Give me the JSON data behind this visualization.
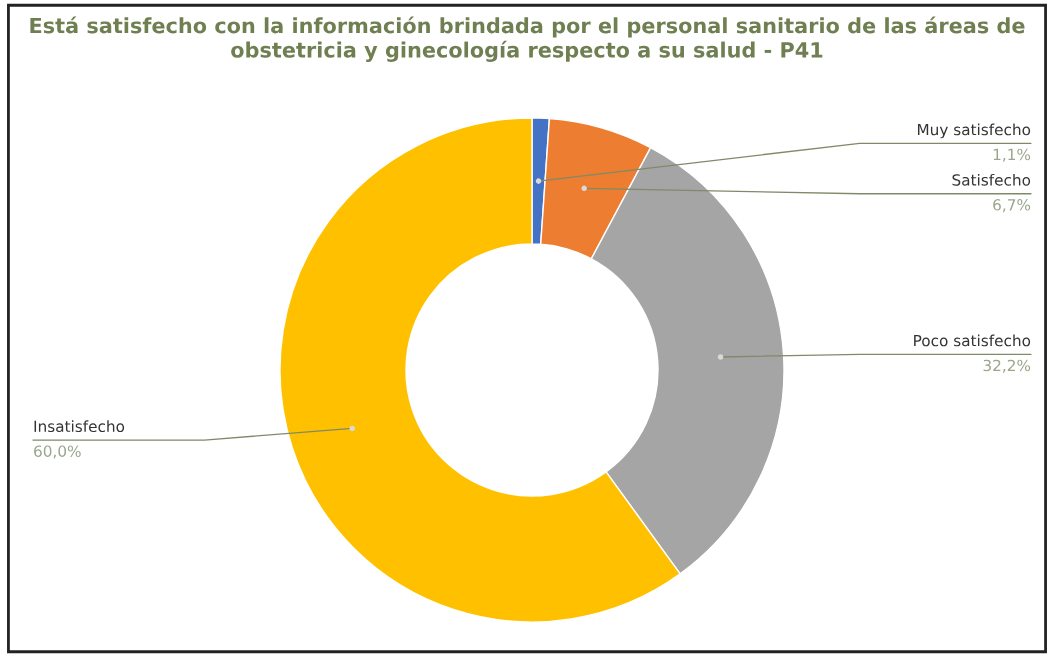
{
  "chart_data": {
    "type": "donut",
    "title": "Está satisfecho con la información brindada por el personal sanitario de las áreas de obstetricia y ginecología respecto a su salud - P41",
    "categories": [
      "Muy satisfecho",
      "Satisfecho",
      "Poco satisfecho",
      "Insatisfecho"
    ],
    "values": [
      1.1,
      6.7,
      32.2,
      60.0
    ],
    "colors": [
      "#4472c4",
      "#ed7d31",
      "#a5a5a5",
      "#ffc000"
    ],
    "value_labels": [
      "1,1%",
      "6,7%",
      "32,2%",
      "60,0%"
    ]
  }
}
